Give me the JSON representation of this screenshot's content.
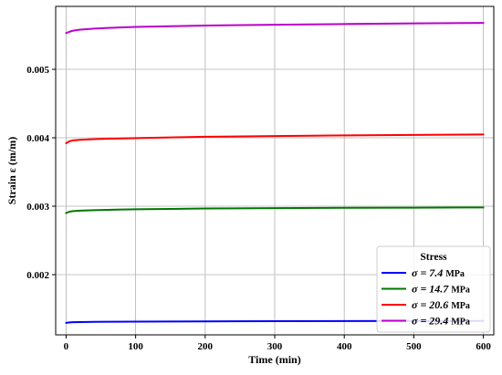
{
  "chart_data": {
    "type": "line",
    "title": "",
    "xlabel": "Time (min)",
    "ylabel": "Strain ε (m/m)",
    "xlim": [
      -15,
      615
    ],
    "ylim": [
      0.00112,
      0.00592
    ],
    "xticks": [
      0,
      100,
      200,
      300,
      400,
      500,
      600
    ],
    "yticks": [
      0.002,
      0.003,
      0.004,
      0.005
    ],
    "ytick_labels": [
      "0.002",
      "0.003",
      "0.004",
      "0.005"
    ],
    "xtick_labels": [
      "0",
      "100",
      "200",
      "300",
      "400",
      "500",
      "600"
    ],
    "grid": true,
    "legend": {
      "title": "Stress",
      "placement": "bottom-right"
    },
    "x": [
      0,
      5,
      10,
      20,
      40,
      60,
      100,
      150,
      200,
      300,
      400,
      500,
      600
    ],
    "series": [
      {
        "name": "σ = 7.4 MPa",
        "name_symbol": "σ = 7.4",
        "name_unit": "MPa",
        "color": "#0000ff",
        "values": [
          0.001295,
          0.001302,
          0.001305,
          0.001307,
          0.00131,
          0.001311,
          0.001313,
          0.001315,
          0.001317,
          0.00132,
          0.001322,
          0.001323,
          0.001324
        ]
      },
      {
        "name": "σ = 14.7 MPa",
        "name_symbol": "σ = 14.7",
        "name_unit": "MPa",
        "color": "#007700",
        "values": [
          0.0029,
          0.00292,
          0.002928,
          0.002935,
          0.002942,
          0.002947,
          0.002955,
          0.00296,
          0.002966,
          0.002972,
          0.002976,
          0.002979,
          0.002982
        ]
      },
      {
        "name": "σ = 20.6 MPa",
        "name_symbol": "σ = 20.6",
        "name_unit": "MPa",
        "color": "#ff0000",
        "values": [
          0.00392,
          0.00395,
          0.003962,
          0.00397,
          0.00398,
          0.003986,
          0.003995,
          0.004005,
          0.004015,
          0.004025,
          0.004035,
          0.004042,
          0.004048
        ]
      },
      {
        "name": "σ = 29.4 MPa",
        "name_symbol": "σ = 29.4",
        "name_unit": "MPa",
        "color": "#bb00cc",
        "values": [
          0.00553,
          0.00555,
          0.005565,
          0.00558,
          0.005595,
          0.005605,
          0.00562,
          0.00563,
          0.00564,
          0.005652,
          0.005662,
          0.005672,
          0.005678
        ]
      }
    ]
  }
}
